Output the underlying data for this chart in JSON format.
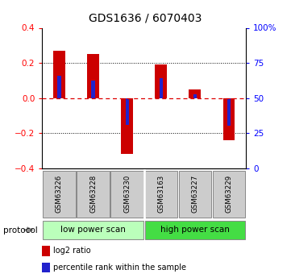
{
  "title": "GDS1636 / 6070403",
  "samples": [
    "GSM63226",
    "GSM63228",
    "GSM63230",
    "GSM63163",
    "GSM63227",
    "GSM63229"
  ],
  "log2_ratio": [
    0.27,
    0.25,
    -0.32,
    0.19,
    0.05,
    -0.24
  ],
  "percentile_rank": [
    0.125,
    0.1,
    -0.155,
    0.115,
    0.02,
    -0.16
  ],
  "ylim": [
    -0.4,
    0.4
  ],
  "yticks_left": [
    -0.4,
    -0.2,
    0.0,
    0.2,
    0.4
  ],
  "yticks_right": [
    0,
    25,
    50,
    75,
    100
  ],
  "bar_color": "#cc0000",
  "blue_color": "#2222cc",
  "protocol_groups": [
    {
      "label": "low power scan",
      "color": "#bbffbb"
    },
    {
      "label": "high power scan",
      "color": "#44dd44"
    }
  ],
  "legend_items": [
    {
      "color": "#cc0000",
      "label": "log2 ratio"
    },
    {
      "color": "#2222cc",
      "label": "percentile rank within the sample"
    }
  ],
  "zero_line_color": "#dd0000",
  "sample_box_color": "#cccccc",
  "sample_box_edge": "#888888"
}
